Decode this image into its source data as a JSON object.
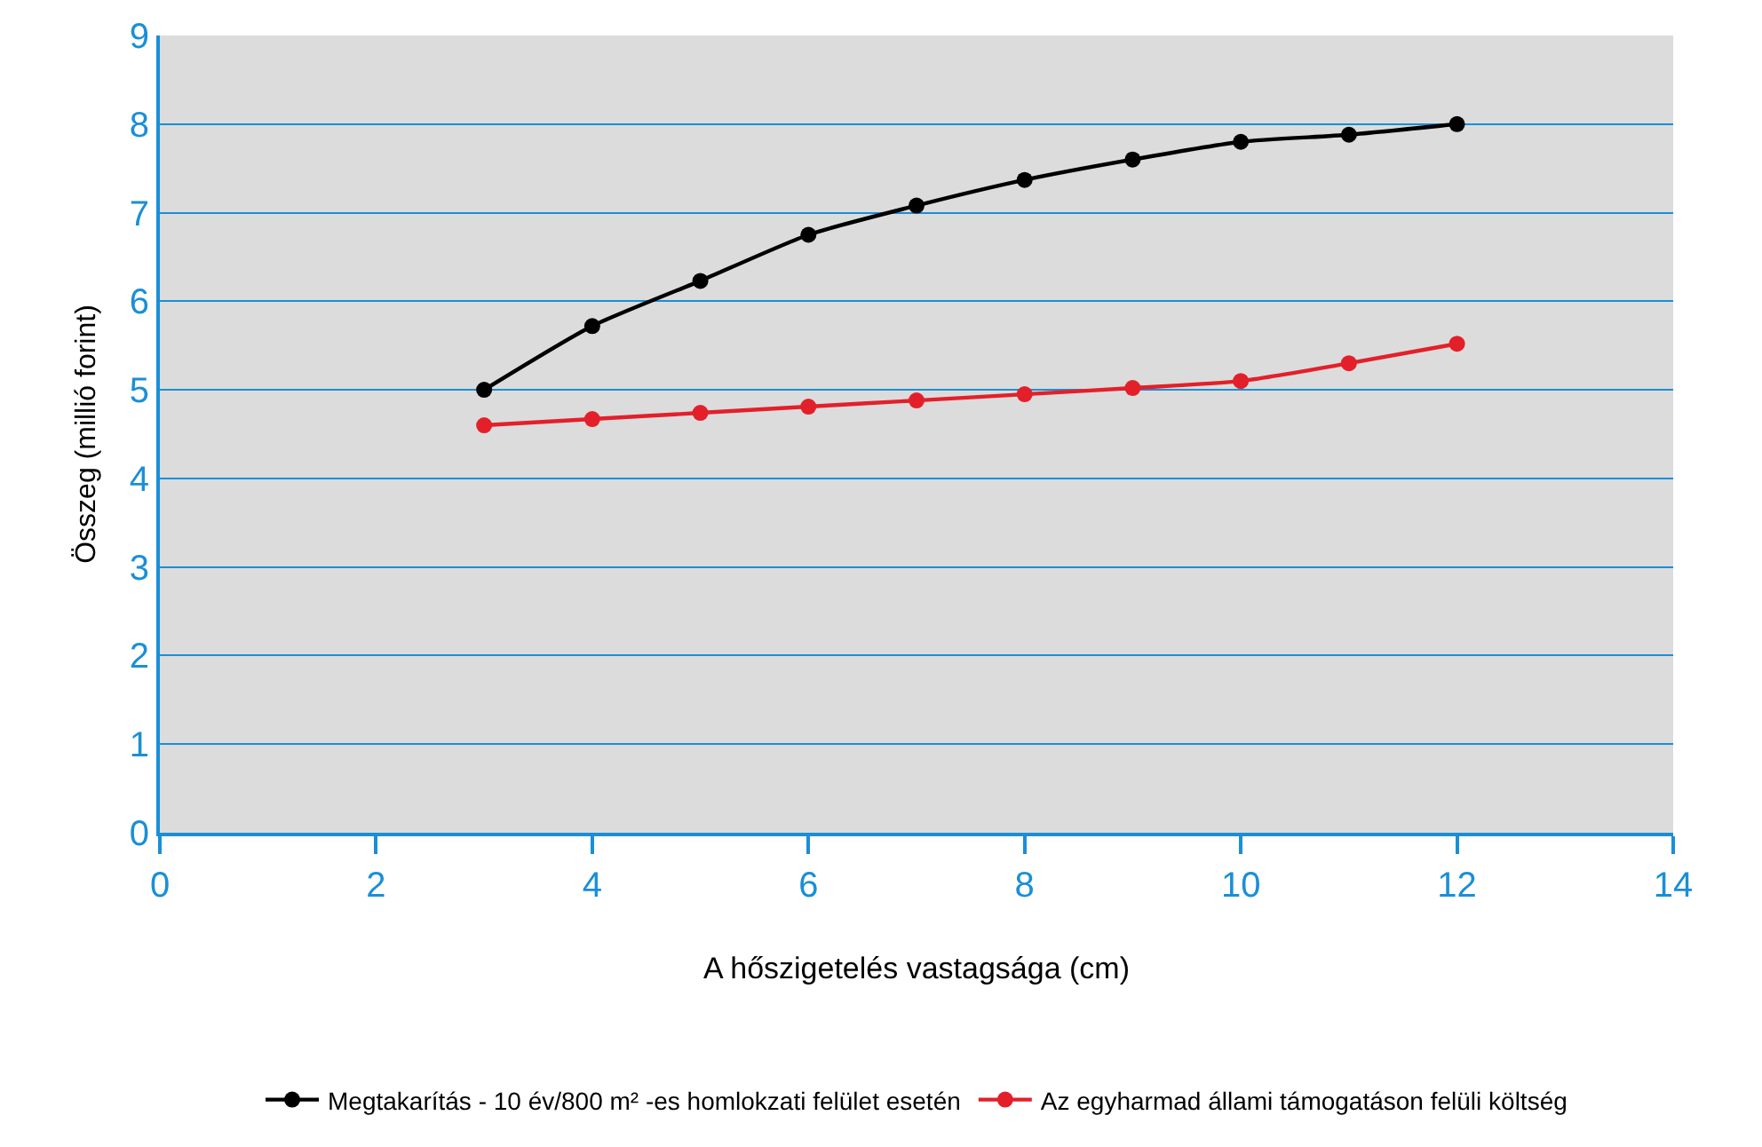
{
  "chart_data": {
    "type": "line",
    "xlabel": "A hőszigetelés vastagsága (cm)",
    "ylabel": "Összeg (millió forint)",
    "x": [
      3,
      4,
      5,
      6,
      7,
      8,
      9,
      10,
      11,
      12
    ],
    "series": [
      {
        "name": "Megtakarítás - 10 év/800 m² -es homlokzati felület esetén",
        "color": "#000000",
        "values": [
          5.0,
          5.72,
          6.23,
          6.75,
          7.08,
          7.37,
          7.6,
          7.8,
          7.88,
          8.0
        ]
      },
      {
        "name": "Az egyharmad állami támogatáson felüli költség",
        "color": "#e3202a",
        "values": [
          4.6,
          4.67,
          4.74,
          4.81,
          4.88,
          4.95,
          5.02,
          5.1,
          5.3,
          5.52
        ]
      }
    ],
    "xlim": [
      0,
      14
    ],
    "xticks": [
      0,
      2,
      4,
      6,
      8,
      10,
      12,
      14
    ],
    "ylim": [
      0,
      9
    ],
    "yticks": [
      0,
      1,
      2,
      3,
      4,
      5,
      6,
      7,
      8,
      9
    ],
    "grid": "y",
    "legend": "bottom",
    "marker": "circle",
    "line_style": "solid"
  }
}
